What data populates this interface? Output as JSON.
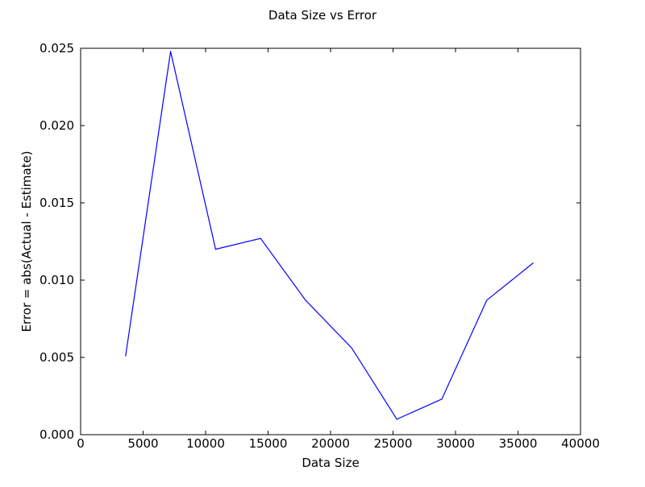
{
  "chart_data": {
    "type": "line",
    "title": "Data Size vs Error",
    "xlabel": "Data Size",
    "ylabel": "Error = abs(Actual - Estimate)",
    "xlim": [
      0,
      40000
    ],
    "ylim": [
      0.0,
      0.025
    ],
    "x_ticks": [
      0,
      5000,
      10000,
      15000,
      20000,
      25000,
      30000,
      35000,
      40000
    ],
    "x_tick_labels": [
      "0",
      "5000",
      "10000",
      "15000",
      "20000",
      "25000",
      "30000",
      "35000",
      "40000"
    ],
    "y_ticks": [
      0.0,
      0.005,
      0.01,
      0.015,
      0.02,
      0.025
    ],
    "y_tick_labels": [
      "0.000",
      "0.005",
      "0.010",
      "0.015",
      "0.020",
      "0.025"
    ],
    "grid": false,
    "line_color": "#0000ff",
    "series": [
      {
        "x": [
          3600,
          7200,
          10800,
          14400,
          18000,
          21700,
          25300,
          28900,
          32500,
          36200
        ],
        "y": [
          0.0051,
          0.0248,
          0.012,
          0.0127,
          0.0087,
          0.0056,
          0.001,
          0.0023,
          0.0087,
          0.0111
        ]
      }
    ]
  }
}
